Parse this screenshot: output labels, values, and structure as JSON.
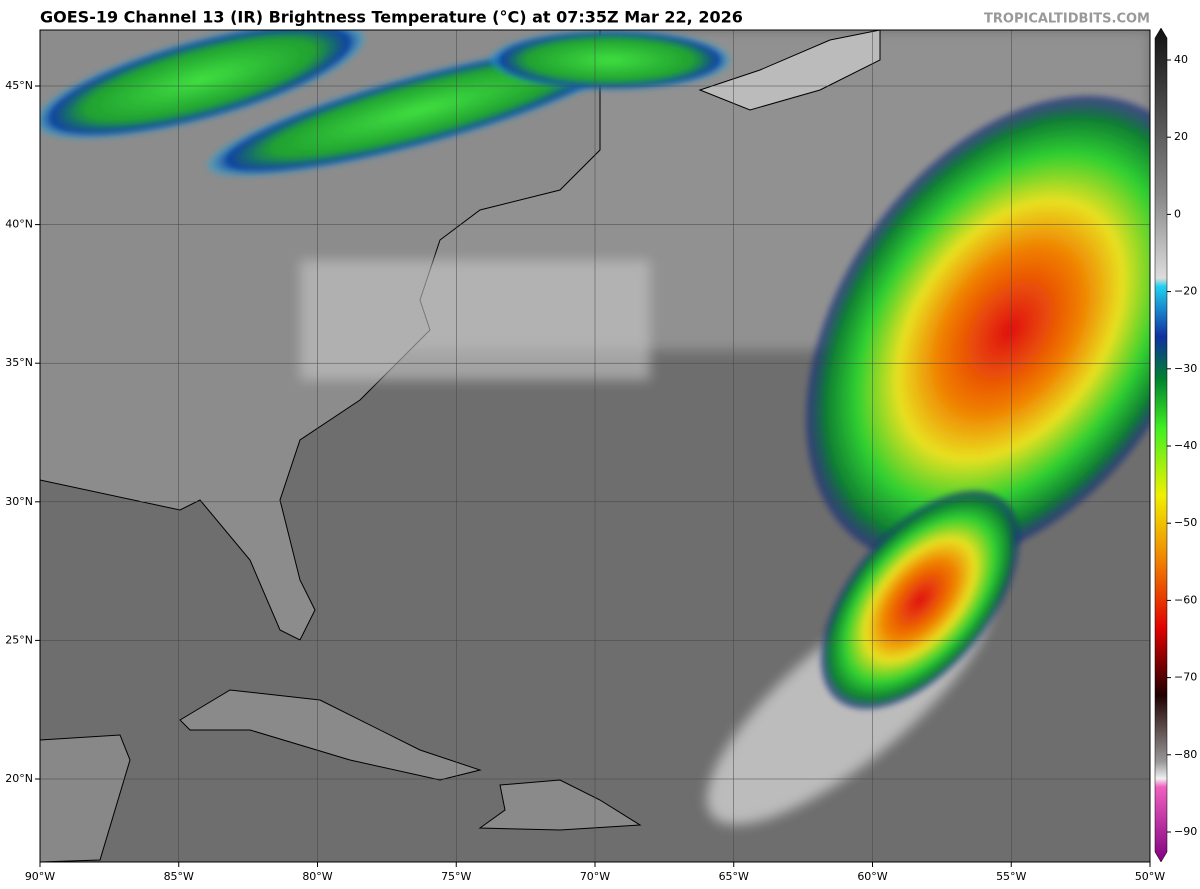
{
  "header": {
    "title": "GOES-19 Channel 13 (IR) Brightness Temperature (°C) at 07:35Z Mar 22, 2026",
    "credit": "TROPICALTIDBITS.COM"
  },
  "map": {
    "lon_labels": [
      "90°W",
      "85°W",
      "80°W",
      "75°W",
      "70°W",
      "65°W",
      "60°W",
      "55°W",
      "50°W"
    ],
    "lat_labels": [
      "45°N",
      "40°N",
      "35°N",
      "30°N",
      "25°N",
      "20°N"
    ]
  },
  "colorbar": {
    "ticks": [
      "40",
      "20",
      "0",
      "−20",
      "−30",
      "−40",
      "−50",
      "−60",
      "−70",
      "−80",
      "−90"
    ]
  }
}
